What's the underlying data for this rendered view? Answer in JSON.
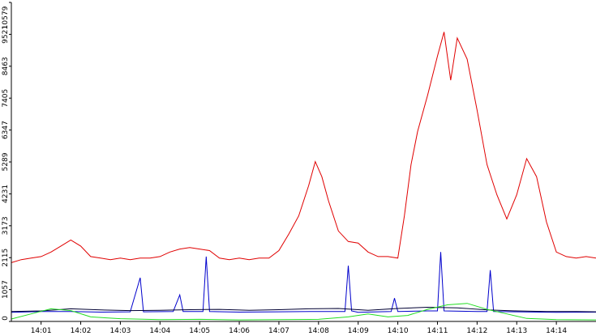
{
  "chart_data": {
    "type": "line",
    "title": "",
    "xlabel": "",
    "ylabel": "",
    "ylim": [
      0,
      10579
    ],
    "xlim": [
      "14:00:15",
      "14:15:00"
    ],
    "grid": false,
    "legend": "none",
    "x_tick_labels": [
      "14:01",
      "14:02",
      "14:03",
      "14:04",
      "14:05",
      "14:06",
      "14:07",
      "14:08",
      "14:09",
      "14:10",
      "14:11",
      "14:12",
      "14:13",
      "14:14"
    ],
    "y_tick_labels": [
      "0",
      "1057",
      "2115",
      "3173",
      "4231",
      "5289",
      "6347",
      "7405",
      "8463",
      "9521",
      "10579"
    ],
    "y_ticks": [
      0,
      1057,
      2115,
      3173,
      4231,
      5289,
      6347,
      7405,
      8463,
      9521,
      10579
    ],
    "series": [
      {
        "color": "#e00000",
        "points": [
          [
            "14:00:15",
            1950
          ],
          [
            "14:00:30",
            2050
          ],
          [
            "14:00:45",
            2100
          ],
          [
            "14:01:00",
            2150
          ],
          [
            "14:01:15",
            2300
          ],
          [
            "14:01:30",
            2500
          ],
          [
            "14:01:45",
            2700
          ],
          [
            "14:02:00",
            2500
          ],
          [
            "14:02:15",
            2150
          ],
          [
            "14:02:30",
            2100
          ],
          [
            "14:02:45",
            2050
          ],
          [
            "14:03:00",
            2100
          ],
          [
            "14:03:15",
            2050
          ],
          [
            "14:03:30",
            2100
          ],
          [
            "14:03:45",
            2100
          ],
          [
            "14:04:00",
            2150
          ],
          [
            "14:04:15",
            2300
          ],
          [
            "14:04:30",
            2400
          ],
          [
            "14:04:45",
            2450
          ],
          [
            "14:05:00",
            2400
          ],
          [
            "14:05:15",
            2350
          ],
          [
            "14:05:30",
            2100
          ],
          [
            "14:05:45",
            2050
          ],
          [
            "14:06:00",
            2100
          ],
          [
            "14:06:15",
            2050
          ],
          [
            "14:06:30",
            2100
          ],
          [
            "14:06:45",
            2100
          ],
          [
            "14:07:00",
            2350
          ],
          [
            "14:07:15",
            2900
          ],
          [
            "14:07:30",
            3500
          ],
          [
            "14:07:45",
            4500
          ],
          [
            "14:07:55",
            5300
          ],
          [
            "14:08:05",
            4800
          ],
          [
            "14:08:15",
            4000
          ],
          [
            "14:08:30",
            3000
          ],
          [
            "14:08:45",
            2650
          ],
          [
            "14:09:00",
            2600
          ],
          [
            "14:09:15",
            2300
          ],
          [
            "14:09:30",
            2150
          ],
          [
            "14:09:45",
            2150
          ],
          [
            "14:10:00",
            2100
          ],
          [
            "14:10:10",
            3500
          ],
          [
            "14:10:20",
            5200
          ],
          [
            "14:10:30",
            6300
          ],
          [
            "14:10:45",
            7500
          ],
          [
            "14:11:00",
            8800
          ],
          [
            "14:11:10",
            9600
          ],
          [
            "14:11:20",
            8000
          ],
          [
            "14:11:30",
            9400
          ],
          [
            "14:11:45",
            8700
          ],
          [
            "14:12:00",
            7000
          ],
          [
            "14:12:15",
            5200
          ],
          [
            "14:12:30",
            4200
          ],
          [
            "14:12:45",
            3400
          ],
          [
            "14:13:00",
            4200
          ],
          [
            "14:13:15",
            5400
          ],
          [
            "14:13:30",
            4800
          ],
          [
            "14:13:45",
            3300
          ],
          [
            "14:14:00",
            2300
          ],
          [
            "14:14:15",
            2150
          ],
          [
            "14:14:30",
            2100
          ],
          [
            "14:14:45",
            2150
          ],
          [
            "14:15:00",
            2100
          ]
        ]
      },
      {
        "color": "#0000cc",
        "points": [
          [
            "14:00:15",
            300
          ],
          [
            "14:01:00",
            330
          ],
          [
            "14:01:45",
            330
          ],
          [
            "14:02:30",
            310
          ],
          [
            "14:03:15",
            320
          ],
          [
            "14:03:30",
            1450
          ],
          [
            "14:03:35",
            320
          ],
          [
            "14:04:20",
            330
          ],
          [
            "14:04:30",
            880
          ],
          [
            "14:04:35",
            330
          ],
          [
            "14:05:05",
            330
          ],
          [
            "14:05:10",
            2150
          ],
          [
            "14:05:15",
            330
          ],
          [
            "14:06:00",
            310
          ],
          [
            "14:07:00",
            320
          ],
          [
            "14:08:00",
            330
          ],
          [
            "14:08:40",
            330
          ],
          [
            "14:08:45",
            1850
          ],
          [
            "14:08:50",
            350
          ],
          [
            "14:09:00",
            300
          ],
          [
            "14:09:30",
            320
          ],
          [
            "14:09:50",
            330
          ],
          [
            "14:09:55",
            770
          ],
          [
            "14:10:00",
            330
          ],
          [
            "14:10:45",
            350
          ],
          [
            "14:11:00",
            350
          ],
          [
            "14:11:05",
            2300
          ],
          [
            "14:11:10",
            350
          ],
          [
            "14:12:00",
            330
          ],
          [
            "14:12:15",
            330
          ],
          [
            "14:12:20",
            1700
          ],
          [
            "14:12:25",
            330
          ],
          [
            "14:13:00",
            320
          ],
          [
            "14:14:00",
            300
          ],
          [
            "14:15:00",
            310
          ]
        ]
      },
      {
        "color": "#000033",
        "points": [
          [
            "14:00:15",
            330
          ],
          [
            "14:01:00",
            350
          ],
          [
            "14:01:45",
            420
          ],
          [
            "14:02:30",
            380
          ],
          [
            "14:03:15",
            360
          ],
          [
            "14:04:00",
            370
          ],
          [
            "14:04:45",
            390
          ],
          [
            "14:05:30",
            400
          ],
          [
            "14:06:15",
            370
          ],
          [
            "14:07:00",
            390
          ],
          [
            "14:07:45",
            420
          ],
          [
            "14:08:30",
            430
          ],
          [
            "14:09:15",
            370
          ],
          [
            "14:10:00",
            430
          ],
          [
            "14:10:45",
            470
          ],
          [
            "14:11:30",
            450
          ],
          [
            "14:12:15",
            380
          ],
          [
            "14:13:00",
            350
          ],
          [
            "14:13:45",
            330
          ],
          [
            "14:14:30",
            330
          ],
          [
            "14:15:00",
            320
          ]
        ]
      },
      {
        "color": "#22dd22",
        "points": [
          [
            "14:00:15",
            80
          ],
          [
            "14:00:45",
            250
          ],
          [
            "14:01:15",
            420
          ],
          [
            "14:01:45",
            360
          ],
          [
            "14:02:15",
            150
          ],
          [
            "14:03:00",
            90
          ],
          [
            "14:04:00",
            60
          ],
          [
            "14:05:00",
            70
          ],
          [
            "14:06:00",
            50
          ],
          [
            "14:07:00",
            60
          ],
          [
            "14:08:00",
            70
          ],
          [
            "14:08:45",
            150
          ],
          [
            "14:09:15",
            250
          ],
          [
            "14:09:45",
            150
          ],
          [
            "14:10:15",
            200
          ],
          [
            "14:10:45",
            400
          ],
          [
            "14:11:15",
            550
          ],
          [
            "14:11:45",
            600
          ],
          [
            "14:12:15",
            400
          ],
          [
            "14:12:45",
            250
          ],
          [
            "14:13:15",
            100
          ],
          [
            "14:14:00",
            60
          ],
          [
            "14:15:00",
            50
          ]
        ]
      }
    ]
  }
}
